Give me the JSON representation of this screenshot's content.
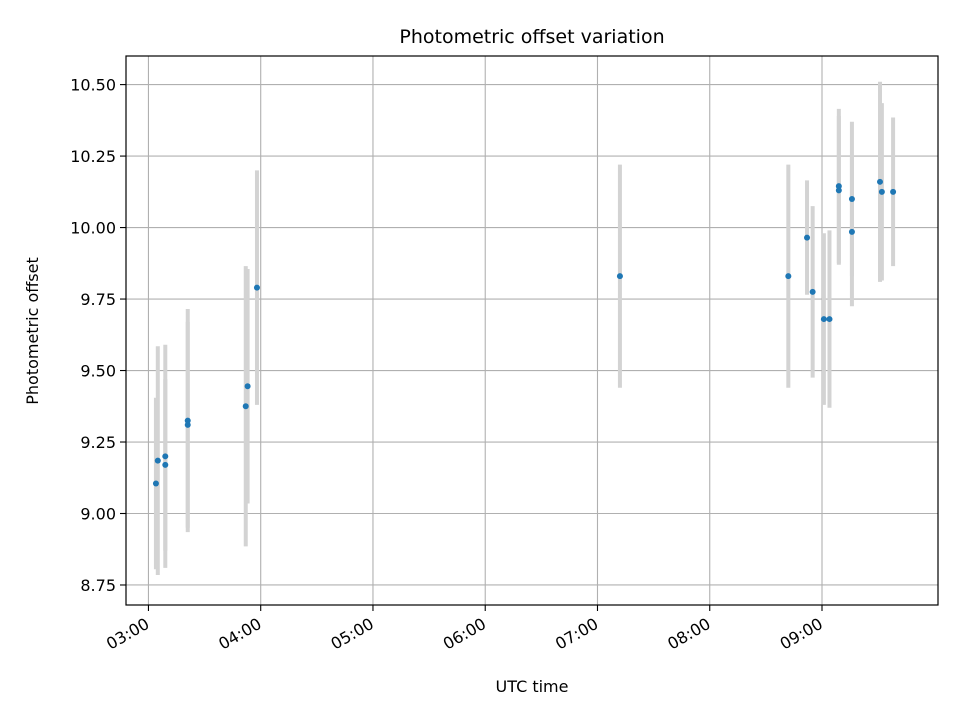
{
  "chart_data": {
    "type": "scatter",
    "title": "Photometric offset variation",
    "xlabel": "UTC time",
    "ylabel": "Photometric offset",
    "x_ticks": [
      "03:00",
      "04:00",
      "05:00",
      "06:00",
      "07:00",
      "08:00",
      "09:00"
    ],
    "y_ticks": [
      "8.75",
      "9.00",
      "9.25",
      "9.50",
      "9.75",
      "10.00",
      "10.25",
      "10.50"
    ],
    "xlim": [
      "02:48",
      "10:02"
    ],
    "ylim": [
      8.68,
      10.6
    ],
    "grid": true,
    "point_color": "#1f77b4",
    "errorbar_color": "#d3d3d3",
    "points": [
      {
        "time": "03:04",
        "y": 9.105,
        "err": 0.3
      },
      {
        "time": "03:05",
        "y": 9.185,
        "err": 0.4
      },
      {
        "time": "03:09",
        "y": 9.2,
        "err": 0.39
      },
      {
        "time": "03:09",
        "y": 9.17,
        "err": 0.3
      },
      {
        "time": "03:21",
        "y": 9.325,
        "err": 0.39
      },
      {
        "time": "03:21",
        "y": 9.31,
        "err": 0.36
      },
      {
        "time": "03:52",
        "y": 9.375,
        "err": 0.49
      },
      {
        "time": "03:53",
        "y": 9.445,
        "err": 0.41
      },
      {
        "time": "03:58",
        "y": 9.79,
        "err": 0.41
      },
      {
        "time": "07:12",
        "y": 9.83,
        "err": 0.39
      },
      {
        "time": "08:42",
        "y": 9.83,
        "err": 0.39
      },
      {
        "time": "08:52",
        "y": 9.965,
        "err": 0.2
      },
      {
        "time": "08:55",
        "y": 9.775,
        "err": 0.3
      },
      {
        "time": "09:01",
        "y": 9.68,
        "err": 0.3
      },
      {
        "time": "09:04",
        "y": 9.68,
        "err": 0.31
      },
      {
        "time": "09:09",
        "y": 10.145,
        "err": 0.27
      },
      {
        "time": "09:09",
        "y": 10.13,
        "err": 0.26
      },
      {
        "time": "09:16",
        "y": 10.1,
        "err": 0.27
      },
      {
        "time": "09:16",
        "y": 9.985,
        "err": 0.26
      },
      {
        "time": "09:31",
        "y": 10.16,
        "err": 0.35
      },
      {
        "time": "09:32",
        "y": 10.125,
        "err": 0.31
      },
      {
        "time": "09:38",
        "y": 10.125,
        "err": 0.26
      }
    ]
  }
}
